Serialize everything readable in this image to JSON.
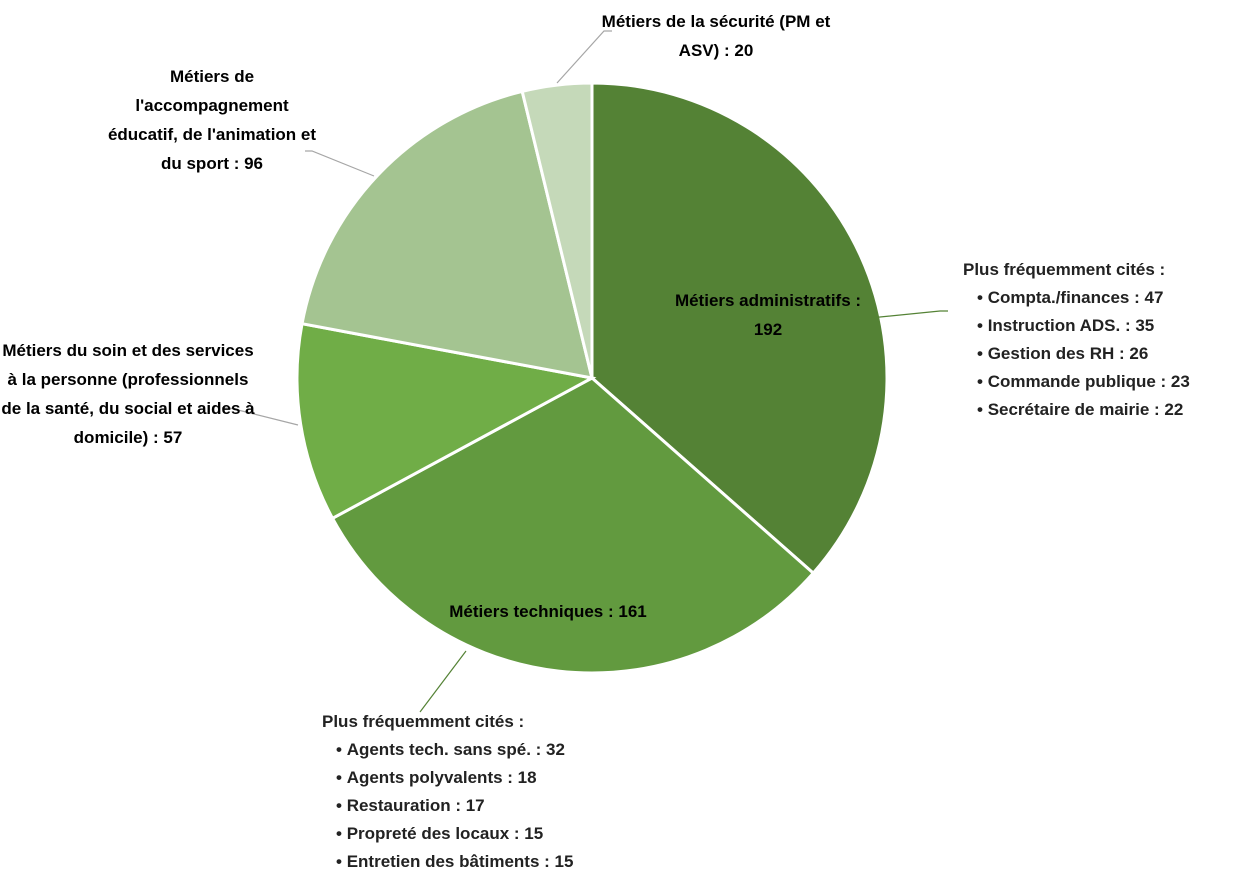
{
  "chart_data": {
    "type": "pie",
    "categories": [
      "Métiers administratifs : 192",
      "Métiers techniques : 161",
      "Métiers du soin et des services à la personne (professionnels de la santé, du social et aides à domicile) : 57",
      "Métiers de l'accompagnement éducatif, de l'animation et du sport : 96",
      "Métiers de la sécurité (PM et ASV) : 20"
    ],
    "values": [
      192,
      161,
      57,
      96,
      20
    ],
    "colors": [
      "#548235",
      "#629a3f",
      "#70ad47",
      "#a4c491",
      "#c5d9b9"
    ],
    "annotations": [
      {
        "title": "Plus fréquemment cités :",
        "items": [
          "Compta./finances : 47",
          "Instruction ADS. : 35",
          "Gestion des RH : 26",
          "Commande publique : 23",
          "Secrétaire de mairie : 22"
        ]
      },
      {
        "title": "Plus fréquemment cités :",
        "items": [
          "Agents tech. sans spé. : 32",
          "Agents polyvalents : 18",
          "Restauration : 17",
          "Propreté des locaux : 15",
          "Entretien des bâtiments : 15"
        ]
      }
    ]
  }
}
